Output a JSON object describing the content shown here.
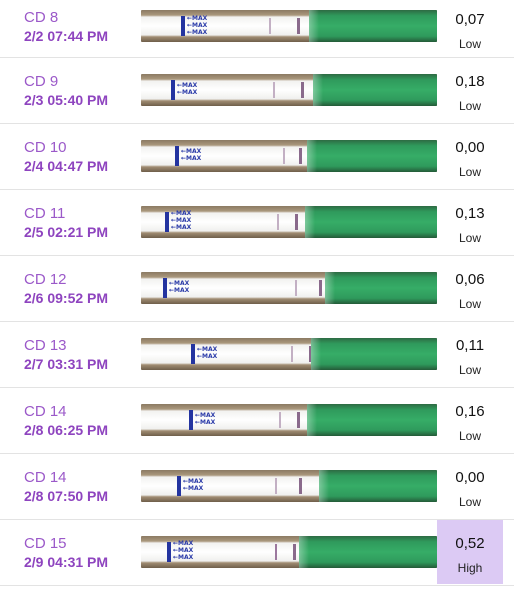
{
  "strip_labels": {
    "max": "←MAX"
  },
  "rows": [
    {
      "cd": "CD 8",
      "date": "2/2   07:44 PM",
      "value": "0,07",
      "level": "Low"
    },
    {
      "cd": "CD 9",
      "date": "2/3   05:40 PM",
      "value": "0,18",
      "level": "Low"
    },
    {
      "cd": "CD 10",
      "date": "2/4   04:47 PM",
      "value": "0,00",
      "level": "Low"
    },
    {
      "cd": "CD 11",
      "date": "2/5   02:21 PM",
      "value": "0,13",
      "level": "Low"
    },
    {
      "cd": "CD 12",
      "date": "2/6   09:52 PM",
      "value": "0,06",
      "level": "Low"
    },
    {
      "cd": "CD 13",
      "date": "2/7   03:31 PM",
      "value": "0,11",
      "level": "Low"
    },
    {
      "cd": "CD 14",
      "date": "2/8   06:25 PM",
      "value": "0,16",
      "level": "Low"
    },
    {
      "cd": "CD 14",
      "date": "2/8   07:50 PM",
      "value": "0,00",
      "level": "Low"
    },
    {
      "cd": "CD 15",
      "date": "2/9   04:31 PM",
      "value": "0,52",
      "level": "High"
    }
  ],
  "colors": {
    "cd_text": "#9b59c9",
    "date_text": "#8e44bf",
    "high_highlight": "#dccaf4",
    "test_pad_green": "#36ad67",
    "max_marker_blue": "#2434a0"
  }
}
